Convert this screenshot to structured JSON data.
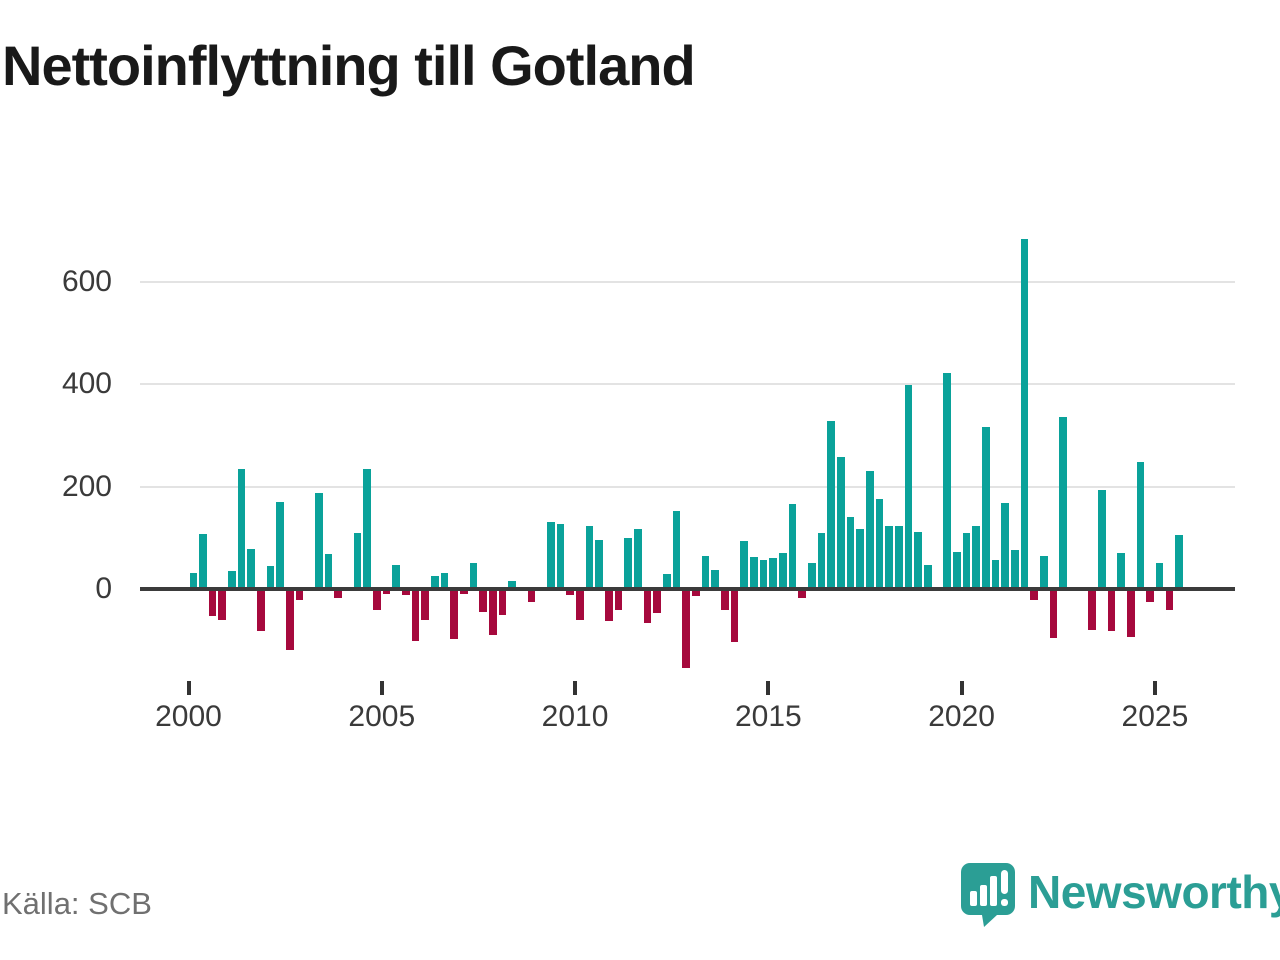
{
  "title": "Nettoinflyttning till Gotland",
  "source": "Källa: SCB",
  "logo": {
    "text": "Newsworthy",
    "icon": "speech-bubble-bar-chart-icon"
  },
  "colors": {
    "positive": "#0aa29a",
    "negative": "#a6093d",
    "axis": "#3b3b3b",
    "grid": "#e3e3e3",
    "title": "#191919",
    "tick_label": "#3a3a3a",
    "source_text": "#707070",
    "logo": "#2b9e95",
    "background": "#ffffff"
  },
  "chart_data": {
    "type": "bar",
    "title": "Nettoinflyttning till Gotland",
    "frequency": "quarterly",
    "start": "2000-Q1",
    "end": "2025-Q3",
    "x_tick_labels": [
      "2000",
      "2005",
      "2010",
      "2015",
      "2020",
      "2025"
    ],
    "y_tick_labels": [
      "0",
      "200",
      "400",
      "600"
    ],
    "y_ticks": [
      0,
      200,
      400,
      600
    ],
    "ylim": [
      -175,
      700
    ],
    "grid": "horizontal",
    "legend": "none",
    "series": [
      {
        "name": "Nettoinflyttning",
        "values": [
          31,
          107,
          -53,
          -61,
          35,
          234,
          79,
          -82,
          45,
          169,
          -119,
          -22,
          0,
          188,
          69,
          -18,
          0,
          109,
          234,
          -41,
          -10,
          46,
          -12,
          -101,
          -60,
          25,
          31,
          -97,
          -10,
          51,
          -45,
          -90,
          -51,
          15,
          0,
          -25,
          0,
          130,
          126,
          -12,
          -60,
          122,
          95,
          -63,
          -40,
          100,
          117,
          -67,
          -46,
          30,
          153,
          -155,
          -13,
          64,
          37,
          -40,
          -103,
          94,
          62,
          56,
          60,
          70,
          165,
          -18,
          50,
          110,
          327,
          257,
          141,
          117,
          230,
          176,
          122,
          122,
          398,
          112,
          47,
          0,
          422,
          73,
          109,
          123,
          316,
          57,
          168,
          77,
          683,
          -21,
          65,
          -95,
          336,
          0,
          0,
          -80,
          193,
          -82,
          70,
          -93,
          248,
          -25,
          50,
          -41,
          105
        ]
      }
    ]
  }
}
